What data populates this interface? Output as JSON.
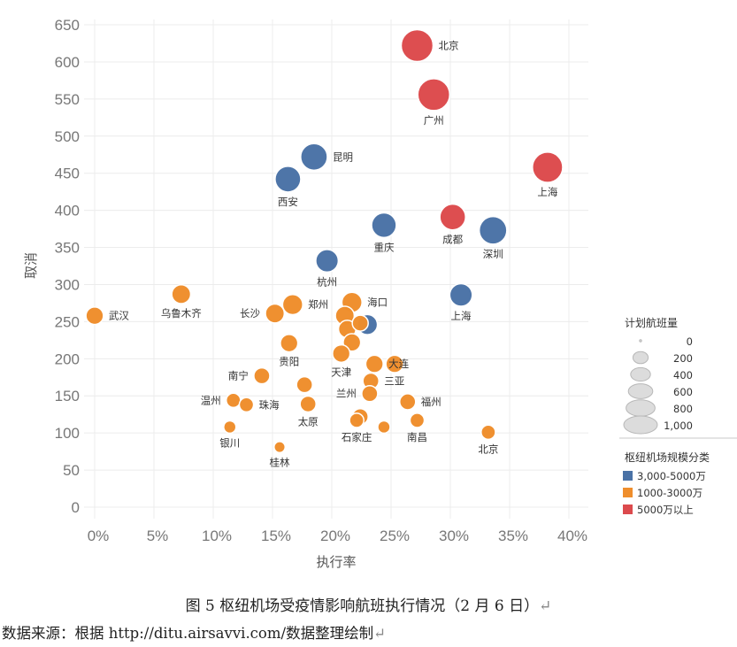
{
  "chart_data": {
    "type": "scatter",
    "xlabel": "执行率",
    "ylabel": "取消",
    "xlim": [
      0,
      0.41
    ],
    "ylim": [
      0,
      650
    ],
    "x_ticks": [
      "0%",
      "5%",
      "10%",
      "15%",
      "20%",
      "25%",
      "30%",
      "35%",
      "40%"
    ],
    "y_ticks": [
      "0",
      "50",
      "100",
      "150",
      "200",
      "250",
      "300",
      "350",
      "400",
      "450",
      "500",
      "550",
      "600",
      "650"
    ],
    "size_legend": {
      "title": "计划航班量",
      "entries": [
        "0",
        "200",
        "400",
        "600",
        "800",
        "1,000"
      ],
      "values": [
        0,
        200,
        400,
        600,
        800,
        1000
      ]
    },
    "color_legend": {
      "title": "枢纽机场规模分类",
      "categories": [
        {
          "name": "3,000-5000万",
          "color": "#4a72a6"
        },
        {
          "name": "1000-3000万",
          "color": "#ef8e2c"
        },
        {
          "name": "5000万以上",
          "color": "#dc4a4d"
        }
      ]
    },
    "points": [
      {
        "label": "北京",
        "x": 0.272,
        "y": 622,
        "size": 1000,
        "category": 2,
        "label_pos": "right"
      },
      {
        "label": "广州",
        "x": 0.286,
        "y": 556,
        "size": 1000,
        "category": 2,
        "label_pos": "below"
      },
      {
        "label": "上海",
        "x": 0.382,
        "y": 458,
        "size": 900,
        "category": 2,
        "label_pos": "below"
      },
      {
        "label": "成都",
        "x": 0.302,
        "y": 391,
        "size": 650,
        "category": 2,
        "label_pos": "below"
      },
      {
        "label": "昆明",
        "x": 0.185,
        "y": 472,
        "size": 700,
        "category": 0,
        "label_pos": "right"
      },
      {
        "label": "西安",
        "x": 0.163,
        "y": 442,
        "size": 650,
        "category": 0,
        "label_pos": "below"
      },
      {
        "label": "重庆",
        "x": 0.244,
        "y": 380,
        "size": 600,
        "category": 0,
        "label_pos": "below"
      },
      {
        "label": "深圳",
        "x": 0.336,
        "y": 373,
        "size": 750,
        "category": 0,
        "label_pos": "below"
      },
      {
        "label": "杭州",
        "x": 0.196,
        "y": 332,
        "size": 500,
        "category": 0,
        "label_pos": "below"
      },
      {
        "label": "上海",
        "x": 0.309,
        "y": 286,
        "size": 500,
        "category": 0,
        "label_pos": "below"
      },
      {
        "label": "",
        "x": 0.23,
        "y": 246,
        "size": 400,
        "category": 0,
        "label_pos": "none"
      },
      {
        "label": "武汉",
        "x": 0.0,
        "y": 258,
        "size": 300,
        "category": 1,
        "label_pos": "right"
      },
      {
        "label": "乌鲁木齐",
        "x": 0.073,
        "y": 287,
        "size": 350,
        "category": 1,
        "label_pos": "below"
      },
      {
        "label": "长沙",
        "x": 0.152,
        "y": 261,
        "size": 350,
        "category": 1,
        "label_pos": "left"
      },
      {
        "label": "郑州",
        "x": 0.167,
        "y": 273,
        "size": 400,
        "category": 1,
        "label_pos": "right"
      },
      {
        "label": "海口",
        "x": 0.217,
        "y": 276,
        "size": 400,
        "category": 1,
        "label_pos": "right"
      },
      {
        "label": "",
        "x": 0.211,
        "y": 258,
        "size": 350,
        "category": 1,
        "label_pos": "none"
      },
      {
        "label": "",
        "x": 0.213,
        "y": 240,
        "size": 300,
        "category": 1,
        "label_pos": "none"
      },
      {
        "label": "",
        "x": 0.217,
        "y": 222,
        "size": 300,
        "category": 1,
        "label_pos": "none"
      },
      {
        "label": "",
        "x": 0.224,
        "y": 248,
        "size": 250,
        "category": 1,
        "label_pos": "none"
      },
      {
        "label": "贵阳",
        "x": 0.164,
        "y": 221,
        "size": 300,
        "category": 1,
        "label_pos": "below"
      },
      {
        "label": "天津",
        "x": 0.208,
        "y": 207,
        "size": 300,
        "category": 1,
        "label_pos": "below"
      },
      {
        "label": "大连",
        "x": 0.236,
        "y": 193,
        "size": 300,
        "category": 1,
        "label_pos": "right"
      },
      {
        "label": "",
        "x": 0.253,
        "y": 193,
        "size": 300,
        "category": 1,
        "label_pos": "none"
      },
      {
        "label": "三亚",
        "x": 0.233,
        "y": 170,
        "size": 250,
        "category": 1,
        "label_pos": "right"
      },
      {
        "label": "兰州",
        "x": 0.232,
        "y": 153,
        "size": 250,
        "category": 1,
        "label_pos": "left"
      },
      {
        "label": "南宁",
        "x": 0.141,
        "y": 177,
        "size": 250,
        "category": 1,
        "label_pos": "left"
      },
      {
        "label": "",
        "x": 0.177,
        "y": 165,
        "size": 250,
        "category": 1,
        "label_pos": "none"
      },
      {
        "label": "太原",
        "x": 0.18,
        "y": 139,
        "size": 250,
        "category": 1,
        "label_pos": "below"
      },
      {
        "label": "温州",
        "x": 0.117,
        "y": 144,
        "size": 200,
        "category": 1,
        "label_pos": "left"
      },
      {
        "label": "珠海",
        "x": 0.128,
        "y": 138,
        "size": 200,
        "category": 1,
        "label_pos": "right"
      },
      {
        "label": "福州",
        "x": 0.264,
        "y": 142,
        "size": 250,
        "category": 1,
        "label_pos": "right"
      },
      {
        "label": "",
        "x": 0.224,
        "y": 122,
        "size": 250,
        "category": 1,
        "label_pos": "none"
      },
      {
        "label": "石家庄",
        "x": 0.221,
        "y": 117,
        "size": 200,
        "category": 1,
        "label_pos": "below"
      },
      {
        "label": "南昌",
        "x": 0.272,
        "y": 117,
        "size": 200,
        "category": 1,
        "label_pos": "below"
      },
      {
        "label": "",
        "x": 0.244,
        "y": 108,
        "size": 150,
        "category": 1,
        "label_pos": "none"
      },
      {
        "label": "银川",
        "x": 0.114,
        "y": 108,
        "size": 150,
        "category": 1,
        "label_pos": "below"
      },
      {
        "label": "北京",
        "x": 0.332,
        "y": 101,
        "size": 200,
        "category": 1,
        "label_pos": "below"
      },
      {
        "label": "桂林",
        "x": 0.156,
        "y": 81,
        "size": 120,
        "category": 1,
        "label_pos": "below"
      }
    ]
  },
  "caption": "图 5 枢纽机场受疫情影响航班执行情况（2 月 6 日）",
  "caption_mark": "↵",
  "source": "数据来源：根据 http://ditu.airsavvi.com/数据整理绘制",
  "source_mark": "↵"
}
